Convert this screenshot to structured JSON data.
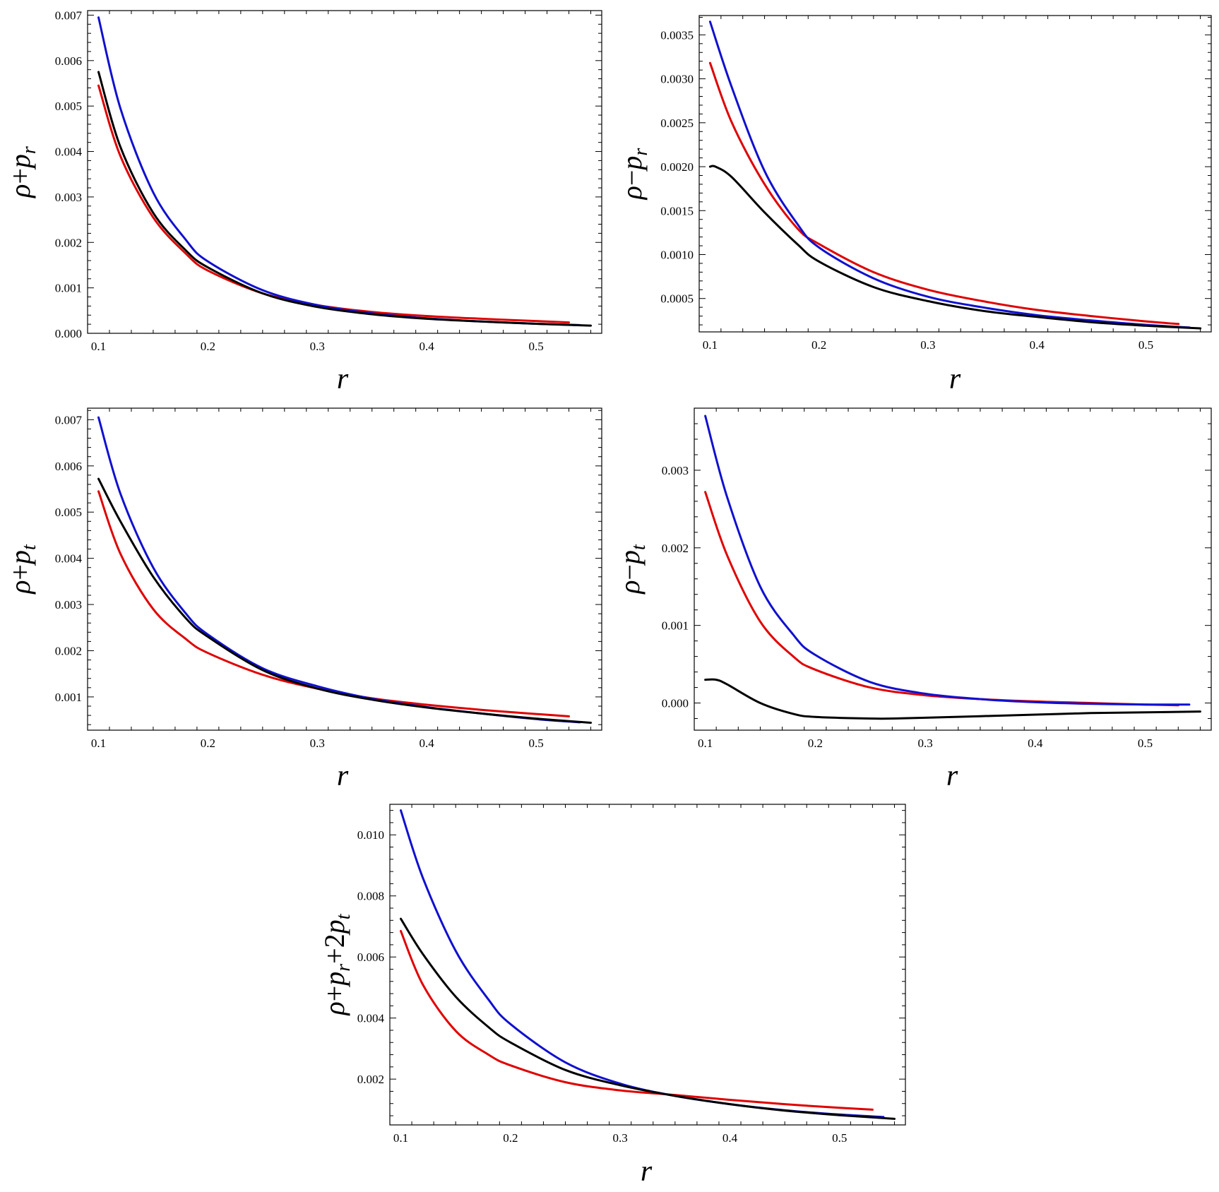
{
  "colors": {
    "red": "#e00000",
    "blue": "#1010d0",
    "black": "#000000"
  },
  "chart_data": [
    {
      "type": "line",
      "xlabel": "r",
      "ylabel": [
        {
          "t": "ρ",
          "k": "sym"
        },
        {
          "t": "+",
          "k": "op"
        },
        {
          "t": "p",
          "k": "sym"
        },
        {
          "t": "r",
          "k": "sub"
        }
      ],
      "xlim": [
        0.09,
        0.56
      ],
      "ylim": [
        -0.0,
        0.0071
      ],
      "xticks": [
        0.1,
        0.2,
        0.3,
        0.4,
        0.5
      ],
      "xtick_labels": [
        "0.1",
        "0.2",
        "0.3",
        "0.4",
        "0.5"
      ],
      "yticks": [
        0,
        0.001,
        0.002,
        0.003,
        0.004,
        0.005,
        0.006,
        0.007
      ],
      "ytick_labels": [
        "0.000",
        "0.001",
        "0.002",
        "0.003",
        "0.004",
        "0.005",
        "0.006",
        "0.007"
      ],
      "series": [
        {
          "color": "red",
          "x": [
            0.1,
            0.12,
            0.15,
            0.18,
            0.2,
            0.25,
            0.3,
            0.35,
            0.4,
            0.45,
            0.5,
            0.53
          ],
          "y": [
            0.00545,
            0.0039,
            0.00255,
            0.00175,
            0.00138,
            0.00088,
            0.00062,
            0.00047,
            0.00038,
            0.00032,
            0.00027,
            0.00024
          ]
        },
        {
          "color": "blue",
          "x": [
            0.1,
            0.12,
            0.15,
            0.18,
            0.2,
            0.25,
            0.3,
            0.35,
            0.4,
            0.45,
            0.5,
            0.54
          ],
          "y": [
            0.00695,
            0.00495,
            0.0031,
            0.00205,
            0.00158,
            0.00095,
            0.00062,
            0.00044,
            0.00033,
            0.00026,
            0.00021,
            0.00018
          ]
        },
        {
          "color": "black",
          "x": [
            0.1,
            0.12,
            0.15,
            0.18,
            0.2,
            0.25,
            0.3,
            0.35,
            0.4,
            0.45,
            0.5,
            0.55
          ],
          "y": [
            0.00575,
            0.0041,
            0.00265,
            0.00182,
            0.00145,
            0.00088,
            0.00058,
            0.00042,
            0.00032,
            0.00026,
            0.00021,
            0.00017
          ]
        }
      ]
    },
    {
      "type": "line",
      "xlabel": "r",
      "ylabel": [
        {
          "t": "ρ",
          "k": "sym"
        },
        {
          "t": "−",
          "k": "op"
        },
        {
          "t": "p",
          "k": "sym"
        },
        {
          "t": "r",
          "k": "sub"
        }
      ],
      "xlim": [
        0.09,
        0.56
      ],
      "ylim": [
        0.00012,
        0.00372
      ],
      "xticks": [
        0.1,
        0.2,
        0.3,
        0.4,
        0.5
      ],
      "xtick_labels": [
        "0.1",
        "0.2",
        "0.3",
        "0.4",
        "0.5"
      ],
      "yticks": [
        0.0005,
        0.001,
        0.0015,
        0.002,
        0.0025,
        0.003,
        0.0035
      ],
      "ytick_labels": [
        "0.0005",
        "0.0010",
        "0.0015",
        "0.0020",
        "0.0025",
        "0.0030",
        "0.0035"
      ],
      "series": [
        {
          "color": "red",
          "x": [
            0.1,
            0.12,
            0.15,
            0.18,
            0.2,
            0.25,
            0.3,
            0.35,
            0.4,
            0.45,
            0.5,
            0.53
          ],
          "y": [
            0.00318,
            0.0025,
            0.0018,
            0.0013,
            0.00112,
            0.0008,
            0.0006,
            0.00047,
            0.00037,
            0.0003,
            0.00024,
            0.00021
          ]
        },
        {
          "color": "blue",
          "x": [
            0.1,
            0.12,
            0.15,
            0.18,
            0.2,
            0.25,
            0.3,
            0.35,
            0.4,
            0.45,
            0.5,
            0.54
          ],
          "y": [
            0.00365,
            0.0029,
            0.00195,
            0.00135,
            0.00108,
            0.00073,
            0.00052,
            0.0004,
            0.00031,
            0.00025,
            0.0002,
            0.00017
          ]
        },
        {
          "color": "black",
          "x": [
            0.1,
            0.105,
            0.12,
            0.15,
            0.18,
            0.2,
            0.25,
            0.3,
            0.35,
            0.4,
            0.45,
            0.5,
            0.55
          ],
          "y": [
            0.002,
            0.002,
            0.00188,
            0.00148,
            0.00112,
            0.00092,
            0.00063,
            0.00047,
            0.00036,
            0.00029,
            0.00023,
            0.00019,
            0.00016
          ]
        }
      ]
    },
    {
      "type": "line",
      "xlabel": "r",
      "ylabel": [
        {
          "t": "ρ",
          "k": "sym"
        },
        {
          "t": "+",
          "k": "op"
        },
        {
          "t": "p",
          "k": "sym"
        },
        {
          "t": "t",
          "k": "sub"
        }
      ],
      "xlim": [
        0.09,
        0.56
      ],
      "ylim": [
        0.00028,
        0.00725
      ],
      "xticks": [
        0.1,
        0.2,
        0.3,
        0.4,
        0.5
      ],
      "xtick_labels": [
        "0.1",
        "0.2",
        "0.3",
        "0.4",
        "0.5"
      ],
      "yticks": [
        0.001,
        0.002,
        0.003,
        0.004,
        0.005,
        0.006,
        0.007
      ],
      "ytick_labels": [
        "0.001",
        "0.002",
        "0.003",
        "0.004",
        "0.005",
        "0.006",
        "0.007"
      ],
      "series": [
        {
          "color": "red",
          "x": [
            0.1,
            0.12,
            0.15,
            0.18,
            0.2,
            0.25,
            0.3,
            0.35,
            0.4,
            0.45,
            0.5,
            0.53
          ],
          "y": [
            0.00545,
            0.0041,
            0.0029,
            0.00225,
            0.00195,
            0.00148,
            0.00118,
            0.00097,
            0.00083,
            0.00072,
            0.00063,
            0.00058
          ]
        },
        {
          "color": "blue",
          "x": [
            0.1,
            0.12,
            0.15,
            0.18,
            0.2,
            0.25,
            0.3,
            0.35,
            0.4,
            0.45,
            0.5,
            0.54
          ],
          "y": [
            0.00705,
            0.0054,
            0.0038,
            0.0028,
            0.00235,
            0.00162,
            0.00123,
            0.00096,
            0.00078,
            0.00064,
            0.00052,
            0.00045
          ]
        },
        {
          "color": "black",
          "x": [
            0.1,
            0.12,
            0.15,
            0.18,
            0.2,
            0.25,
            0.3,
            0.35,
            0.4,
            0.45,
            0.5,
            0.55
          ],
          "y": [
            0.00572,
            0.0048,
            0.0036,
            0.0027,
            0.0023,
            0.00158,
            0.00118,
            0.00094,
            0.00077,
            0.00064,
            0.00053,
            0.00044
          ]
        }
      ]
    },
    {
      "type": "line",
      "xlabel": "r",
      "ylabel": [
        {
          "t": "ρ",
          "k": "sym"
        },
        {
          "t": "−",
          "k": "op"
        },
        {
          "t": "p",
          "k": "sym"
        },
        {
          "t": "t",
          "k": "sub"
        }
      ],
      "xlim": [
        0.09,
        0.56
      ],
      "ylim": [
        -0.00035,
        0.0038
      ],
      "xticks": [
        0.1,
        0.2,
        0.3,
        0.4,
        0.5
      ],
      "xtick_labels": [
        "0.1",
        "0.2",
        "0.3",
        "0.4",
        "0.5"
      ],
      "yticks": [
        0,
        0.001,
        0.002,
        0.003
      ],
      "ytick_labels": [
        "0.000",
        "0.001",
        "0.002",
        "0.003"
      ],
      "series": [
        {
          "color": "red",
          "x": [
            0.1,
            0.12,
            0.15,
            0.18,
            0.2,
            0.25,
            0.3,
            0.35,
            0.4,
            0.45,
            0.5,
            0.53
          ],
          "y": [
            0.00272,
            0.0019,
            0.00105,
            0.0006,
            0.00043,
            0.0002,
            0.0001,
            5e-05,
            2e-05,
            0.0,
            -2e-05,
            -3e-05
          ]
        },
        {
          "color": "blue",
          "x": [
            0.1,
            0.12,
            0.15,
            0.18,
            0.2,
            0.25,
            0.3,
            0.35,
            0.4,
            0.45,
            0.5,
            0.54
          ],
          "y": [
            0.0037,
            0.00265,
            0.0015,
            0.00088,
            0.00062,
            0.00027,
            0.00012,
            5e-05,
            1e-05,
            -1e-05,
            -2e-05,
            -2e-05
          ]
        },
        {
          "color": "black",
          "x": [
            0.1,
            0.11,
            0.12,
            0.15,
            0.18,
            0.2,
            0.25,
            0.27,
            0.3,
            0.35,
            0.4,
            0.45,
            0.5,
            0.55
          ],
          "y": [
            0.0003,
            0.0003,
            0.00024,
            0.0,
            -0.00014,
            -0.00018,
            -0.0002,
            -0.0002,
            -0.00019,
            -0.00017,
            -0.00015,
            -0.00013,
            -0.00012,
            -0.00011
          ]
        }
      ]
    },
    {
      "type": "line",
      "xlabel": "r",
      "ylabel": [
        {
          "t": "ρ",
          "k": "sym"
        },
        {
          "t": "+",
          "k": "op"
        },
        {
          "t": "p",
          "k": "sym"
        },
        {
          "t": "r",
          "k": "sub"
        },
        {
          "t": "+2",
          "k": "op"
        },
        {
          "t": "p",
          "k": "sym"
        },
        {
          "t": "t",
          "k": "sub"
        }
      ],
      "xlim": [
        0.09,
        0.56
      ],
      "ylim": [
        0.0005,
        0.011
      ],
      "xticks": [
        0.1,
        0.2,
        0.3,
        0.4,
        0.5
      ],
      "xtick_labels": [
        "0.1",
        "0.2",
        "0.3",
        "0.4",
        "0.5"
      ],
      "yticks": [
        0.002,
        0.004,
        0.006,
        0.008,
        0.01
      ],
      "ytick_labels": [
        "0.002",
        "0.004",
        "0.006",
        "0.008",
        "0.010"
      ],
      "series": [
        {
          "color": "red",
          "x": [
            0.1,
            0.12,
            0.15,
            0.18,
            0.2,
            0.25,
            0.3,
            0.35,
            0.4,
            0.45,
            0.5,
            0.53
          ],
          "y": [
            0.00685,
            0.0051,
            0.00358,
            0.0028,
            0.00245,
            0.0019,
            0.00163,
            0.00148,
            0.00132,
            0.00118,
            0.00106,
            0.001
          ]
        },
        {
          "color": "blue",
          "x": [
            0.1,
            0.12,
            0.15,
            0.18,
            0.2,
            0.25,
            0.3,
            0.35,
            0.4,
            0.45,
            0.5,
            0.54
          ],
          "y": [
            0.0108,
            0.0086,
            0.0062,
            0.0046,
            0.0038,
            0.00255,
            0.00185,
            0.00145,
            0.00118,
            0.00098,
            0.00084,
            0.00076
          ]
        },
        {
          "color": "black",
          "x": [
            0.1,
            0.12,
            0.15,
            0.18,
            0.2,
            0.25,
            0.3,
            0.35,
            0.4,
            0.45,
            0.5,
            0.55
          ],
          "y": [
            0.00725,
            0.0061,
            0.0047,
            0.0037,
            0.0032,
            0.0023,
            0.0018,
            0.00145,
            0.00118,
            0.00097,
            0.00082,
            0.0007
          ]
        }
      ]
    }
  ]
}
